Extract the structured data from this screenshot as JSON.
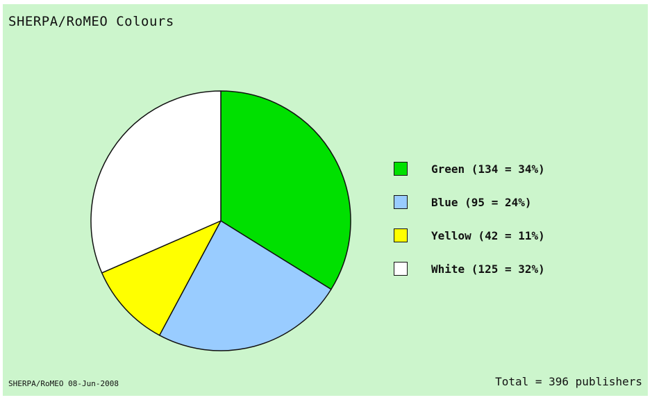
{
  "chart_data": {
    "type": "pie",
    "title": "SHERPA/RoMEO Colours",
    "slices": [
      {
        "name": "Green",
        "value": 134,
        "percent": 34,
        "label": "Green (134 = 34%)",
        "color": "#00e000"
      },
      {
        "name": "Blue",
        "value": 95,
        "percent": 24,
        "label": "Blue (95 = 24%)",
        "color": "#99ccff"
      },
      {
        "name": "Yellow",
        "value": 42,
        "percent": 11,
        "label": "Yellow (42 = 11%)",
        "color": "#ffff00"
      },
      {
        "name": "White",
        "value": 125,
        "percent": 32,
        "label": "White (125 = 32%)",
        "color": "#ffffff"
      }
    ],
    "start": "12 o'clock",
    "direction": "clockwise",
    "legend_position": "right",
    "total": 396
  },
  "colors": {
    "background": "#ccf5cc",
    "outline": "#111111"
  },
  "footer": {
    "left_text": "SHERPA/RoMEO 08-Jun-2008",
    "right_text": "Total = 396 publishers"
  }
}
